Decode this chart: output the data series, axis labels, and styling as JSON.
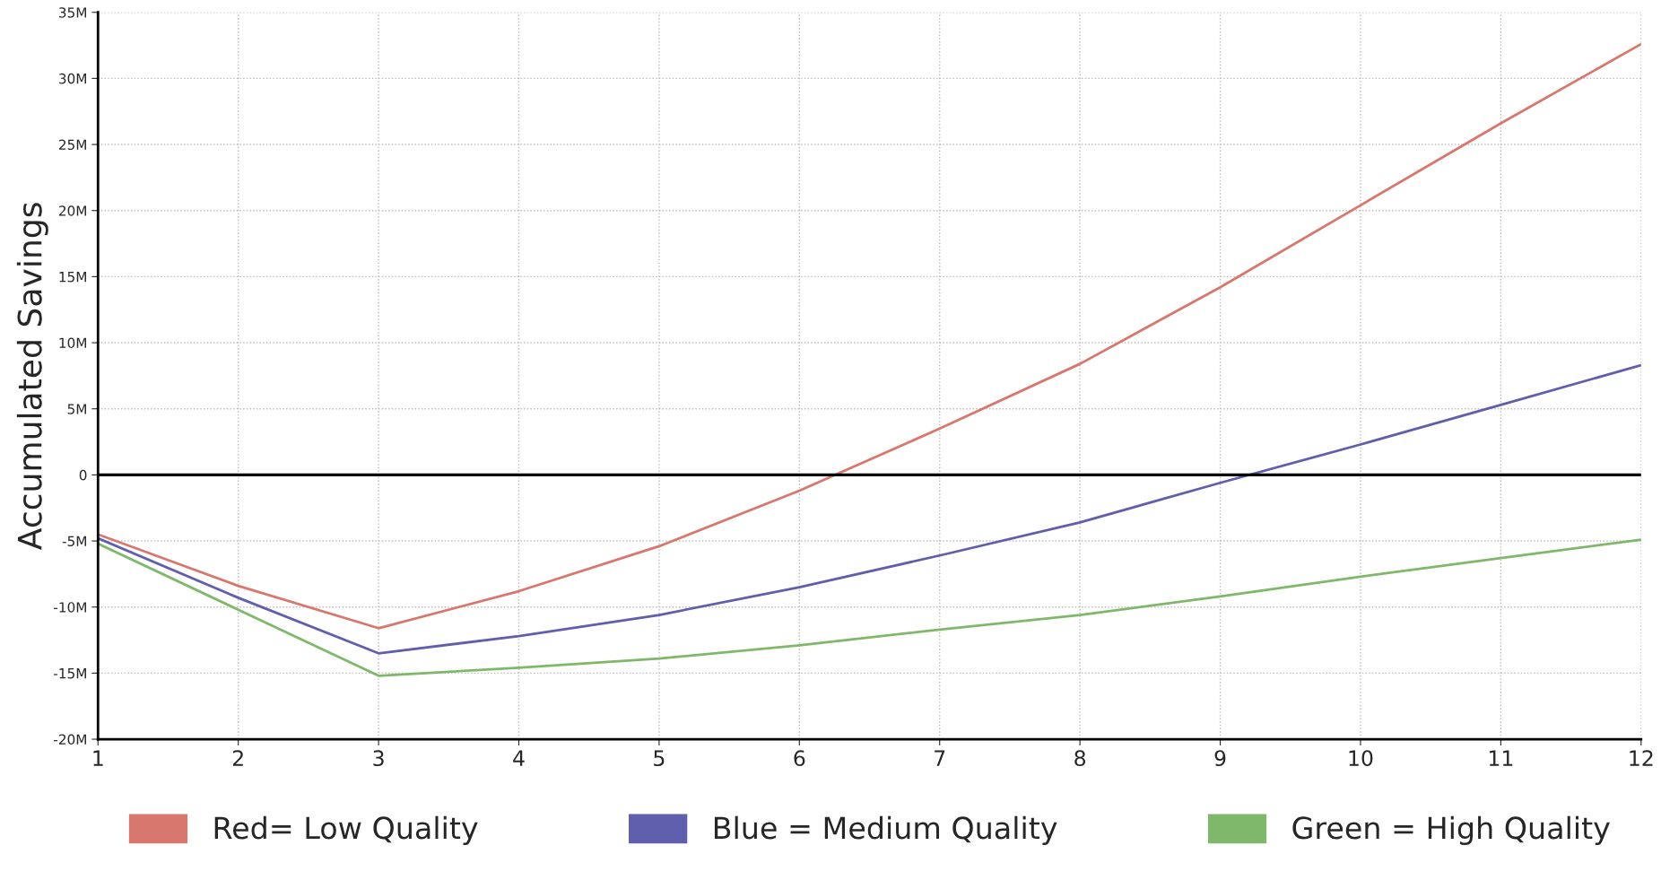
{
  "chart_data": {
    "type": "line",
    "ylabel": "Accumulated Savings",
    "x": [
      1,
      2,
      3,
      4,
      5,
      6,
      7,
      8,
      9,
      10,
      11,
      12
    ],
    "series": [
      {
        "name": "Red= Low Quality",
        "color": "#d7776d",
        "values": [
          -4.5,
          -8.4,
          -11.6,
          -8.8,
          -5.4,
          -1.2,
          3.5,
          8.4,
          14.2,
          20.4,
          26.6,
          32.6
        ]
      },
      {
        "name": "Blue = Medium Quality",
        "color": "#5f5fad",
        "values": [
          -4.8,
          -9.3,
          -13.5,
          -12.2,
          -10.6,
          -8.5,
          -6.1,
          -3.6,
          -0.6,
          2.3,
          5.3,
          8.3
        ]
      },
      {
        "name": "Green = High Quality",
        "color": "#7fb86a",
        "values": [
          -5.2,
          -10.2,
          -15.2,
          -14.6,
          -13.9,
          -12.9,
          -11.7,
          -10.6,
          -9.2,
          -7.7,
          -6.3,
          -4.9
        ]
      }
    ],
    "xlim": [
      1,
      12
    ],
    "xticks": [
      1,
      2,
      3,
      4,
      5,
      6,
      7,
      8,
      9,
      10,
      11,
      12
    ],
    "ylim": [
      -20,
      35
    ],
    "yticks": [
      {
        "value": -20,
        "label": "-20M"
      },
      {
        "value": -15,
        "label": "-15M"
      },
      {
        "value": -10,
        "label": "-10M"
      },
      {
        "value": -5,
        "label": "-5M"
      },
      0,
      {
        "value": 5,
        "label": "5M"
      },
      {
        "value": 10,
        "label": "10M"
      },
      {
        "value": 15,
        "label": "15M"
      },
      {
        "value": 20,
        "label": "20M"
      },
      {
        "value": 25,
        "label": "25M"
      },
      {
        "value": 30,
        "label": "30M"
      },
      {
        "value": 35,
        "label": "35M"
      }
    ],
    "ref_lines": [
      {
        "axis": "y",
        "value": 0,
        "color": "#000000",
        "line_style": "solid"
      }
    ],
    "grid": true,
    "legend": "bottom",
    "marker": "none",
    "line_style": "solid"
  }
}
